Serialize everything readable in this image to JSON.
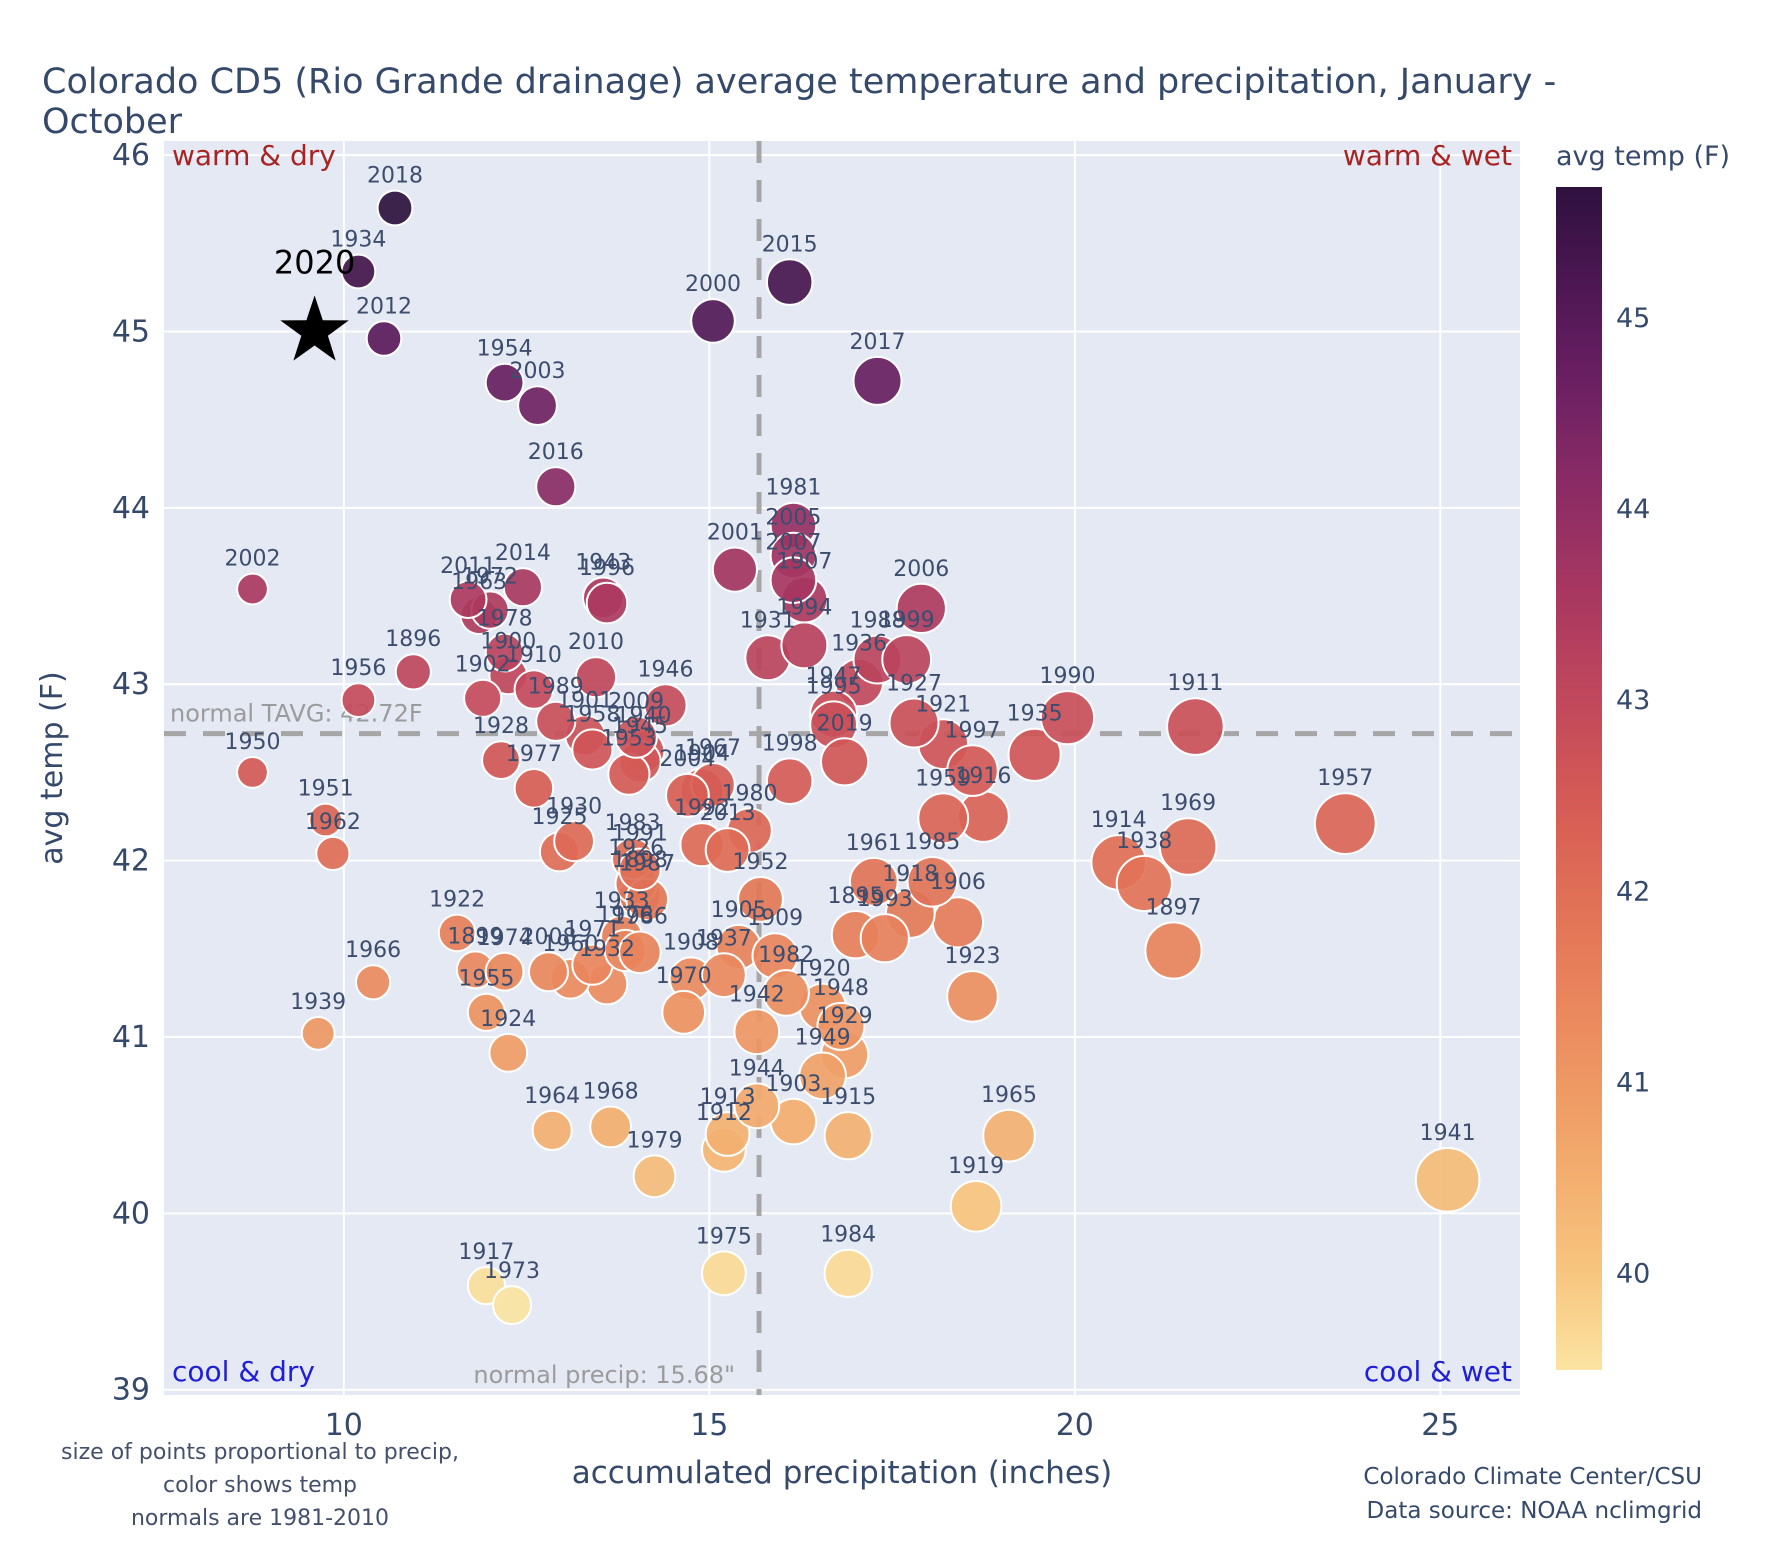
{
  "title": "Colorado CD5 (Rio Grande drainage) average temperature and precipitation, January - October",
  "footnote_lines": [
    "size of points proportional to precip,",
    "color shows temp",
    "normals are 1981-2010"
  ],
  "credit_lines": [
    "Colorado Climate Center/CSU",
    "Data source: NOAA nclimgrid"
  ],
  "chart_data": {
    "type": "scatter",
    "title": "Colorado CD5 (Rio Grande drainage) average temperature and precipitation, January - October",
    "xlabel": "accumulated precipitation (inches)",
    "ylabel": "avg temp (F)",
    "x_ticks": [
      10,
      15,
      20,
      25
    ],
    "y_ticks": [
      39,
      40,
      41,
      42,
      43,
      44,
      45,
      46
    ],
    "xlim": [
      7.54,
      26.09
    ],
    "ylim": [
      38.97,
      46.08
    ],
    "grid": true,
    "corner_labels": {
      "top_left": "warm & dry",
      "top_right": "warm & wet",
      "bottom_left": "cool & dry",
      "bottom_right": "cool & wet",
      "warm_color": "#a82424",
      "cool_color": "#1f1fd6"
    },
    "normals": {
      "tavg_f": 42.72,
      "precip_in": 15.68,
      "tavg_label": "normal TAVG: 42.72F",
      "precip_label": "normal precip: 15.68\"",
      "line_color": "#a6a6a6",
      "label_color": "#9b9b9b"
    },
    "colorbar": {
      "title": "avg temp (F)",
      "min": 39.49,
      "max": 45.68,
      "ticks": [
        40,
        41,
        42,
        43,
        44,
        45
      ]
    },
    "colormap_stops": [
      [
        39.4,
        "#fce8a8"
      ],
      [
        40.0,
        "#f7c57e"
      ],
      [
        40.6,
        "#f2a96c"
      ],
      [
        41.2,
        "#ec8f60"
      ],
      [
        41.8,
        "#e37657"
      ],
      [
        42.4,
        "#d75d55"
      ],
      [
        43.0,
        "#c2485c"
      ],
      [
        43.6,
        "#a63661"
      ],
      [
        44.2,
        "#862a66"
      ],
      [
        44.8,
        "#621d60"
      ],
      [
        45.3,
        "#45154e"
      ],
      [
        45.8,
        "#27103a"
      ]
    ],
    "star": {
      "year": "2020",
      "precip": 9.6,
      "temp": 45.0
    },
    "points_format": [
      "year",
      "precip_in",
      "avg_temp_f"
    ],
    "points": [
      [
        1895,
        17.0,
        41.58
      ],
      [
        1896,
        10.95,
        43.07
      ],
      [
        1897,
        21.35,
        41.49
      ],
      [
        1898,
        14.05,
        41.8
      ],
      [
        1899,
        11.8,
        41.38
      ],
      [
        1900,
        12.25,
        43.05
      ],
      [
        1901,
        13.3,
        42.71
      ],
      [
        1902,
        11.9,
        42.92
      ],
      [
        1903,
        16.15,
        40.52
      ],
      [
        1904,
        14.9,
        42.4
      ],
      [
        1905,
        15.4,
        41.51
      ],
      [
        1906,
        18.4,
        41.65
      ],
      [
        1907,
        16.3,
        43.48
      ],
      [
        1908,
        14.75,
        41.33
      ],
      [
        1909,
        15.9,
        41.46
      ],
      [
        1910,
        12.6,
        42.97
      ],
      [
        1911,
        21.65,
        42.76
      ],
      [
        1912,
        15.2,
        40.36
      ],
      [
        1913,
        15.25,
        40.45
      ],
      [
        1914,
        20.6,
        41.99
      ],
      [
        1915,
        16.9,
        40.44
      ],
      [
        1916,
        18.75,
        42.25
      ],
      [
        1917,
        11.95,
        39.59
      ],
      [
        1918,
        17.75,
        41.7
      ],
      [
        1919,
        18.65,
        40.04
      ],
      [
        1920,
        16.55,
        41.17
      ],
      [
        1921,
        18.2,
        42.66
      ],
      [
        1922,
        11.55,
        41.59
      ],
      [
        1923,
        18.6,
        41.23
      ],
      [
        1924,
        12.25,
        40.91
      ],
      [
        1925,
        12.95,
        42.05
      ],
      [
        1926,
        14.0,
        41.87
      ],
      [
        1927,
        17.8,
        42.78
      ],
      [
        1928,
        12.15,
        42.57
      ],
      [
        1929,
        16.85,
        40.9
      ],
      [
        1930,
        13.15,
        42.11
      ],
      [
        1931,
        15.8,
        43.15
      ],
      [
        1932,
        13.6,
        41.3
      ],
      [
        1933,
        13.8,
        41.57
      ],
      [
        1934,
        10.2,
        45.34
      ],
      [
        1935,
        19.45,
        42.6
      ],
      [
        1936,
        17.05,
        43.01
      ],
      [
        1937,
        15.2,
        41.35
      ],
      [
        1938,
        20.95,
        41.87
      ],
      [
        1939,
        9.65,
        41.02
      ],
      [
        1940,
        14.1,
        42.62
      ],
      [
        1941,
        25.1,
        40.19
      ],
      [
        1942,
        15.65,
        41.03
      ],
      [
        1943,
        13.55,
        43.49
      ],
      [
        1944,
        15.65,
        40.61
      ],
      [
        1945,
        14.05,
        42.56
      ],
      [
        1946,
        14.4,
        42.88
      ],
      [
        1947,
        16.7,
        42.83
      ],
      [
        1948,
        16.8,
        41.06
      ],
      [
        1949,
        16.55,
        40.78
      ],
      [
        1950,
        8.75,
        42.5
      ],
      [
        1951,
        9.75,
        42.23
      ],
      [
        1952,
        15.7,
        41.78
      ],
      [
        1953,
        13.9,
        42.49
      ],
      [
        1954,
        12.2,
        44.71
      ],
      [
        1955,
        11.95,
        41.14
      ],
      [
        1956,
        10.2,
        42.91
      ],
      [
        1957,
        23.7,
        42.21
      ],
      [
        1958,
        13.4,
        42.63
      ],
      [
        1959,
        18.2,
        42.24
      ],
      [
        1960,
        13.1,
        41.33
      ],
      [
        1961,
        17.25,
        41.88
      ],
      [
        1962,
        9.85,
        42.04
      ],
      [
        1963,
        11.85,
        43.39
      ],
      [
        1964,
        12.85,
        40.47
      ],
      [
        1965,
        19.1,
        40.44
      ],
      [
        1966,
        10.4,
        41.31
      ],
      [
        1967,
        15.05,
        42.43
      ],
      [
        1968,
        13.65,
        40.49
      ],
      [
        1969,
        21.55,
        42.08
      ],
      [
        1970,
        14.65,
        41.14
      ],
      [
        1971,
        13.4,
        41.41
      ],
      [
        1972,
        12.0,
        43.42
      ],
      [
        1973,
        12.3,
        39.48
      ],
      [
        1974,
        12.2,
        41.37
      ],
      [
        1975,
        15.2,
        39.66
      ],
      [
        1976,
        13.85,
        41.49
      ],
      [
        1977,
        12.6,
        42.41
      ],
      [
        1978,
        12.2,
        43.18
      ],
      [
        1979,
        14.25,
        40.21
      ],
      [
        1980,
        15.55,
        42.17
      ],
      [
        1981,
        16.15,
        43.9
      ],
      [
        1982,
        16.05,
        41.25
      ],
      [
        1983,
        13.95,
        42.01
      ],
      [
        1984,
        16.9,
        39.66
      ],
      [
        1985,
        18.05,
        41.88
      ],
      [
        1986,
        14.05,
        41.48
      ],
      [
        1987,
        14.15,
        41.78
      ],
      [
        1988,
        17.3,
        43.14
      ],
      [
        1989,
        12.9,
        42.79
      ],
      [
        1990,
        19.9,
        42.81
      ],
      [
        1991,
        14.05,
        41.95
      ],
      [
        1992,
        14.9,
        42.09
      ],
      [
        1993,
        17.4,
        41.56
      ],
      [
        1994,
        16.3,
        43.22
      ],
      [
        1995,
        16.7,
        42.77
      ],
      [
        1996,
        13.6,
        43.46
      ],
      [
        1997,
        18.6,
        42.51
      ],
      [
        1998,
        16.1,
        42.45
      ],
      [
        1999,
        17.7,
        43.14
      ],
      [
        2000,
        15.05,
        45.06
      ],
      [
        2001,
        15.35,
        43.65
      ],
      [
        2002,
        8.75,
        43.54
      ],
      [
        2003,
        12.65,
        44.58
      ],
      [
        2004,
        14.7,
        42.37
      ],
      [
        2005,
        16.15,
        43.73
      ],
      [
        2006,
        17.9,
        43.43
      ],
      [
        2007,
        16.15,
        43.59
      ],
      [
        2008,
        12.8,
        41.37
      ],
      [
        2009,
        14.0,
        42.7
      ],
      [
        2010,
        13.45,
        43.04
      ],
      [
        2011,
        11.7,
        43.48
      ],
      [
        2012,
        10.55,
        44.96
      ],
      [
        2013,
        15.25,
        42.06
      ],
      [
        2014,
        12.45,
        43.55
      ],
      [
        2015,
        16.1,
        45.28
      ],
      [
        2016,
        12.9,
        44.12
      ],
      [
        2017,
        17.3,
        44.72
      ],
      [
        2018,
        10.7,
        45.7
      ],
      [
        2019,
        16.85,
        42.56
      ]
    ]
  },
  "colors": {
    "plot_bg": "#e4e9f3",
    "grid": "#ffffff",
    "text": "#35496b",
    "point_label": "#3d4d6e",
    "title": "#35496b"
  }
}
